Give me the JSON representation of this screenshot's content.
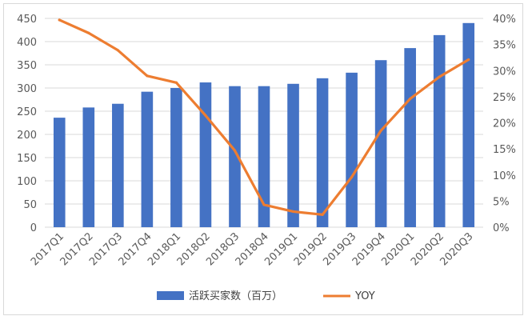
{
  "chart_data": {
    "type": "bar",
    "categories": [
      "2017Q1",
      "2017Q2",
      "2017Q3",
      "2017Q4",
      "2018Q1",
      "2018Q2",
      "2018Q3",
      "2018Q4",
      "2019Q1",
      "2019Q2",
      "2019Q3",
      "2019Q4",
      "2020Q1",
      "2020Q2",
      "2020Q3"
    ],
    "series": [
      {
        "name": "活跃买家数（百万）",
        "type": "bar",
        "axis": "left",
        "color": "#4472c4",
        "values": [
          236,
          258,
          266,
          292,
          300,
          312,
          304,
          304,
          309,
          321,
          333,
          360,
          386,
          414,
          440
        ]
      },
      {
        "name": "YOY",
        "type": "line",
        "axis": "right",
        "color": "#ed7d31",
        "values": [
          39.7,
          37.2,
          33.9,
          29.0,
          27.7,
          21.4,
          14.7,
          4.3,
          3.0,
          2.4,
          9.6,
          18.5,
          24.6,
          28.8,
          32.1
        ]
      }
    ],
    "y_left": {
      "min": 0,
      "max": 450,
      "step": 50
    },
    "y_right": {
      "min": 0,
      "max": 40,
      "step": 5,
      "unit": "%"
    },
    "grid": true,
    "legend_position": "bottom"
  }
}
